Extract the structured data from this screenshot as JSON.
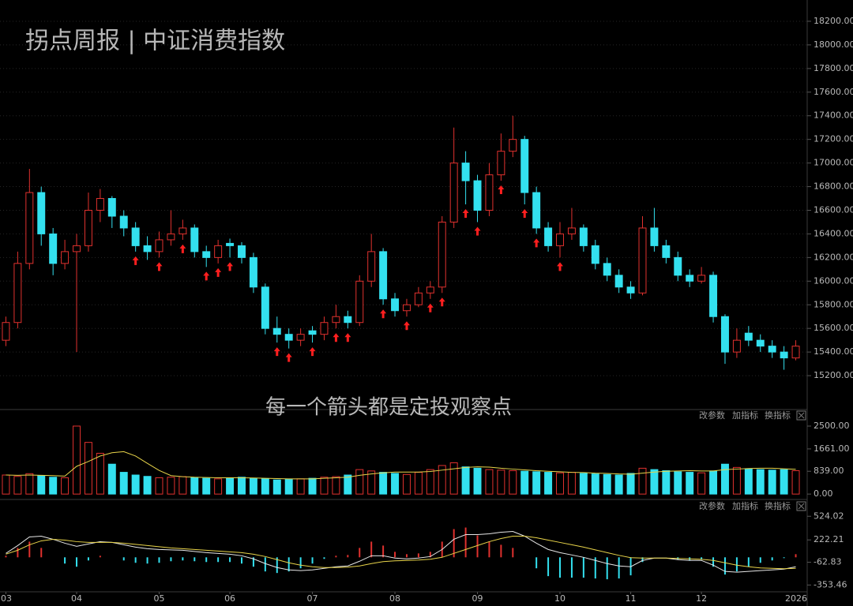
{
  "chart_data": [
    {
      "type": "candlestick",
      "title": "拐点周报 | 中证消费指数",
      "annotation": "每一个箭头都是定投观察点",
      "text_color": "#f2b71c",
      "xlim": [
        -0.5,
        67.5
      ],
      "ylim": [
        14920,
        18380
      ],
      "yticks": [
        {
          "value": 15200,
          "label": "15200.00"
        },
        {
          "value": 15400,
          "label": "15400.00"
        },
        {
          "value": 15600,
          "label": "15600.00"
        },
        {
          "value": 15800,
          "label": "15800.00"
        },
        {
          "value": 16000,
          "label": "16000.00"
        },
        {
          "value": 16200,
          "label": "16200.00"
        },
        {
          "value": 16400,
          "label": "16400.00"
        },
        {
          "value": 16600,
          "label": "16600.00"
        },
        {
          "value": 16800,
          "label": "16800.00"
        },
        {
          "value": 17000,
          "label": "17000.00"
        },
        {
          "value": 17200,
          "label": "17200.00"
        },
        {
          "value": 17400,
          "label": "17400.00"
        },
        {
          "value": 17600,
          "label": "17600.00"
        },
        {
          "value": 17800,
          "label": "17800.00"
        },
        {
          "value": 18000,
          "label": "18000.00"
        },
        {
          "value": 18200,
          "label": "18200.00"
        }
      ],
      "grid": true,
      "up_color": "#e0312e",
      "down_color": "#33e0ef",
      "arrow_color": "#ff1f1f",
      "candles": [
        [
          15500,
          15700,
          15450,
          15650
        ],
        [
          15650,
          16250,
          15600,
          16150
        ],
        [
          16150,
          16950,
          16100,
          16750
        ],
        [
          16750,
          16800,
          16300,
          16400
        ],
        [
          16400,
          16450,
          16050,
          16150
        ],
        [
          16150,
          16350,
          16100,
          16250
        ],
        [
          16250,
          16400,
          15400,
          16300
        ],
        [
          16300,
          16750,
          16250,
          16600
        ],
        [
          16600,
          16780,
          16500,
          16700
        ],
        [
          16700,
          16720,
          16450,
          16550
        ],
        [
          16550,
          16600,
          16380,
          16450
        ],
        [
          16450,
          16500,
          16250,
          16300
        ],
        [
          16300,
          16380,
          16180,
          16250
        ],
        [
          16250,
          16420,
          16200,
          16350
        ],
        [
          16350,
          16600,
          16300,
          16400
        ],
        [
          16400,
          16520,
          16350,
          16450
        ],
        [
          16450,
          16480,
          16200,
          16250
        ],
        [
          16250,
          16300,
          16120,
          16200
        ],
        [
          16200,
          16350,
          16150,
          16300
        ],
        [
          16320,
          16360,
          16200,
          16300
        ],
        [
          16300,
          16330,
          16150,
          16200
        ],
        [
          16200,
          16240,
          15900,
          15950
        ],
        [
          15950,
          15980,
          15550,
          15600
        ],
        [
          15600,
          15700,
          15480,
          15550
        ],
        [
          15550,
          15600,
          15430,
          15500
        ],
        [
          15500,
          15600,
          15450,
          15550
        ],
        [
          15580,
          15620,
          15480,
          15550
        ],
        [
          15550,
          15700,
          15500,
          15650
        ],
        [
          15650,
          15800,
          15600,
          15700
        ],
        [
          15700,
          15750,
          15600,
          15650
        ],
        [
          15650,
          16050,
          15620,
          16000
        ],
        [
          16000,
          16400,
          15950,
          16250
        ],
        [
          16250,
          16280,
          15800,
          15850
        ],
        [
          15850,
          15900,
          15700,
          15750
        ],
        [
          15750,
          15850,
          15700,
          15800
        ],
        [
          15800,
          15950,
          15780,
          15900
        ],
        [
          15900,
          16000,
          15850,
          15950
        ],
        [
          15950,
          16550,
          15900,
          16500
        ],
        [
          16500,
          17300,
          16450,
          17000
        ],
        [
          17000,
          17100,
          16650,
          16850
        ],
        [
          16850,
          16900,
          16500,
          16600
        ],
        [
          16600,
          17000,
          16550,
          16900
        ],
        [
          16900,
          17250,
          16850,
          17100
        ],
        [
          17100,
          17400,
          17050,
          17200
        ],
        [
          17200,
          17230,
          16650,
          16750
        ],
        [
          16750,
          16800,
          16400,
          16450
        ],
        [
          16450,
          16500,
          16250,
          16300
        ],
        [
          16300,
          16500,
          16200,
          16400
        ],
        [
          16400,
          16620,
          16350,
          16450
        ],
        [
          16450,
          16480,
          16250,
          16300
        ],
        [
          16300,
          16350,
          16100,
          16150
        ],
        [
          16150,
          16200,
          16000,
          16050
        ],
        [
          16050,
          16100,
          15900,
          15950
        ],
        [
          15950,
          16000,
          15850,
          15900
        ],
        [
          15900,
          16550,
          15880,
          16450
        ],
        [
          16450,
          16620,
          16250,
          16300
        ],
        [
          16300,
          16350,
          16150,
          16200
        ],
        [
          16200,
          16250,
          16000,
          16050
        ],
        [
          16050,
          16100,
          15950,
          16000
        ],
        [
          16000,
          16120,
          15980,
          16050
        ],
        [
          16050,
          16080,
          15650,
          15700
        ],
        [
          15700,
          15720,
          15300,
          15400
        ],
        [
          15400,
          15600,
          15350,
          15500
        ],
        [
          15560,
          15620,
          15450,
          15500
        ],
        [
          15500,
          15550,
          15400,
          15450
        ],
        [
          15450,
          15500,
          15350,
          15400
        ],
        [
          15400,
          15450,
          15250,
          15350
        ],
        [
          15350,
          15500,
          15330,
          15450
        ]
      ],
      "arrows": [
        11,
        13,
        15,
        17,
        18,
        19,
        23,
        24,
        26,
        28,
        29,
        32,
        34,
        36,
        37,
        39,
        40,
        42,
        44,
        45,
        47
      ]
    },
    {
      "type": "volume",
      "panel_buttons": [
        "改参数",
        "加指标",
        "换指标"
      ],
      "ylim": [
        -170,
        3080
      ],
      "yticks": [
        {
          "value": 0,
          "label": "0.00"
        },
        {
          "value": 839,
          "label": "839.00"
        },
        {
          "value": 1661,
          "label": "1661.00"
        },
        {
          "value": 2500,
          "label": "2500.00"
        }
      ],
      "values": [
        700,
        650,
        750,
        680,
        620,
        600,
        2500,
        1900,
        1500,
        1100,
        800,
        700,
        650,
        600,
        620,
        640,
        600,
        580,
        560,
        600,
        620,
        580,
        560,
        520,
        540,
        560,
        580,
        620,
        640,
        700,
        900,
        850,
        800,
        760,
        720,
        800,
        900,
        1050,
        1150,
        1000,
        950,
        900,
        880,
        860,
        840,
        820,
        800,
        780,
        800,
        760,
        740,
        720,
        700,
        760,
        950,
        900,
        860,
        820,
        800,
        780,
        850,
        1100,
        980,
        920,
        900,
        880,
        900,
        860
      ],
      "ma_color": "#e8d44a",
      "ma_values": [
        700,
        690,
        700,
        690,
        680,
        660,
        1020,
        1200,
        1400,
        1520,
        1560,
        1400,
        1130,
        870,
        680,
        640,
        620,
        610,
        600,
        600,
        600,
        590,
        580,
        570,
        560,
        560,
        560,
        580,
        600,
        620,
        690,
        740,
        780,
        810,
        810,
        810,
        830,
        880,
        930,
        980,
        1000,
        990,
        950,
        920,
        890,
        860,
        840,
        820,
        800,
        790,
        770,
        760,
        740,
        730,
        770,
        810,
        840,
        850,
        860,
        850,
        850,
        900,
        920,
        940,
        950,
        950,
        930,
        910
      ]
    },
    {
      "type": "macd",
      "panel_buttons": [
        "改参数",
        "加指标",
        "换指标"
      ],
      "ylim": [
        -440,
        728
      ],
      "yticks": [
        {
          "value": -353.46,
          "label": "-353.46"
        },
        {
          "value": -62.83,
          "label": "-62.83"
        },
        222.21,
        524.02
      ],
      "xticks": [
        {
          "value": 0,
          "label": "03"
        },
        {
          "value": 6,
          "label": "04"
        },
        {
          "value": 13,
          "label": "05"
        },
        {
          "value": 19,
          "label": "06"
        },
        {
          "value": 26,
          "label": "07"
        },
        {
          "value": 33,
          "label": "08"
        },
        {
          "value": 40,
          "label": "09"
        },
        {
          "value": 47,
          "label": "10"
        },
        {
          "value": 53,
          "label": "11"
        },
        {
          "value": 59,
          "label": "12"
        },
        2026
      ],
      "dif_color": "#e6e6e6",
      "dea_color": "#e8d44a",
      "dif": [
        50,
        150,
        260,
        270,
        230,
        180,
        140,
        170,
        200,
        190,
        160,
        130,
        110,
        100,
        95,
        90,
        75,
        60,
        50,
        40,
        20,
        -20,
        -80,
        -130,
        -160,
        -170,
        -160,
        -140,
        -120,
        -110,
        -50,
        20,
        20,
        -10,
        -20,
        -10,
        10,
        100,
        230,
        290,
        290,
        300,
        320,
        330,
        270,
        180,
        100,
        60,
        30,
        0,
        -40,
        -80,
        -110,
        -120,
        -40,
        -10,
        -10,
        -30,
        -40,
        -40,
        -100,
        -180,
        -190,
        -180,
        -170,
        -160,
        -150,
        -120
      ],
      "dea": [
        40,
        90,
        160,
        210,
        230,
        220,
        200,
        190,
        190,
        190,
        180,
        165,
        150,
        135,
        120,
        110,
        100,
        90,
        80,
        70,
        60,
        40,
        10,
        -30,
        -70,
        -100,
        -120,
        -130,
        -130,
        -125,
        -110,
        -80,
        -55,
        -45,
        -40,
        -35,
        -25,
        0,
        50,
        100,
        150,
        200,
        240,
        270,
        270,
        250,
        220,
        190,
        160,
        130,
        95,
        60,
        25,
        -5,
        -10,
        -10,
        -10,
        -15,
        -20,
        -25,
        -40,
        -70,
        -100,
        -120,
        -135,
        -140,
        -145,
        -140
      ],
      "histogram": [
        20,
        120,
        200,
        120,
        0,
        -80,
        -120,
        -40,
        20,
        0,
        -40,
        -70,
        -80,
        -70,
        -50,
        -40,
        -50,
        -60,
        -60,
        -60,
        -80,
        -120,
        -180,
        -200,
        -180,
        -140,
        -80,
        -20,
        20,
        30,
        120,
        200,
        150,
        70,
        40,
        50,
        70,
        200,
        360,
        380,
        280,
        200,
        160,
        120,
        0,
        -140,
        -240,
        -260,
        -260,
        -260,
        -270,
        -280,
        -270,
        -230,
        -60,
        0,
        0,
        -30,
        -40,
        -30,
        -120,
        -220,
        -180,
        -120,
        -70,
        -40,
        -10,
        40
      ]
    }
  ]
}
